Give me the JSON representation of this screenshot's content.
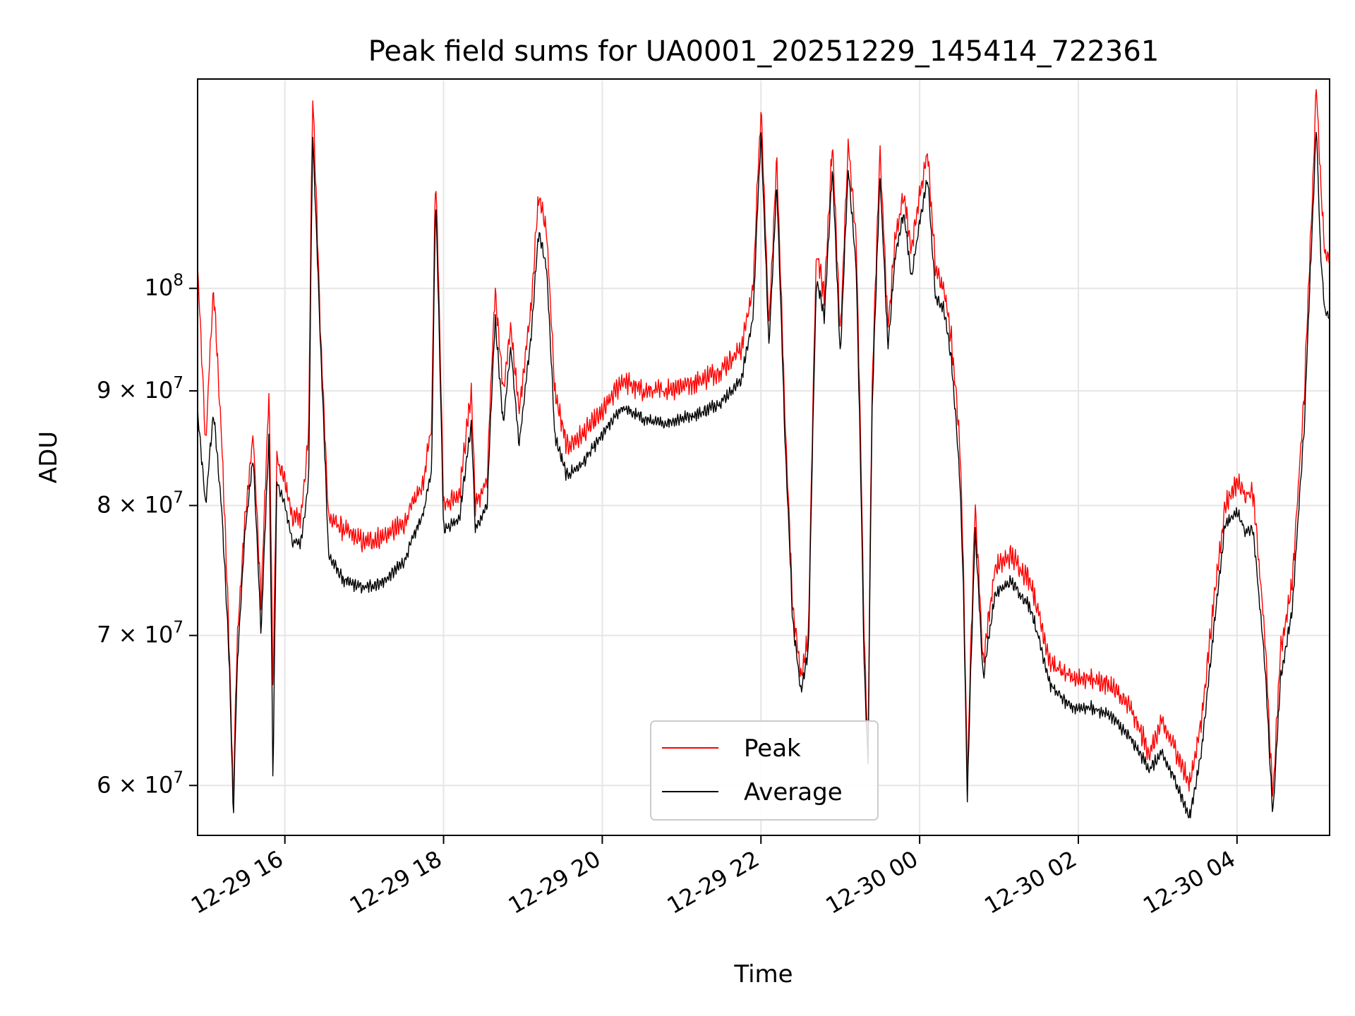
{
  "chart_data": {
    "type": "line",
    "title": "Peak field sums for UA0001_20251229_145414_722361",
    "xlabel": "Time",
    "ylabel": "ADU",
    "y_scale": "log",
    "grid": true,
    "legend_position": "bottom-center",
    "x_range": [
      "2025-12-29 14:54",
      "2025-12-30 05:10"
    ],
    "ylim": [
      57000000,
      124000000
    ],
    "x_ticks": [
      {
        "time": "2025-12-29 16:00",
        "label": "12-29 16"
      },
      {
        "time": "2025-12-29 18:00",
        "label": "12-29 18"
      },
      {
        "time": "2025-12-29 20:00",
        "label": "12-29 20"
      },
      {
        "time": "2025-12-29 22:00",
        "label": "12-29 22"
      },
      {
        "time": "2025-12-30 00:00",
        "label": "12-30 00"
      },
      {
        "time": "2025-12-30 02:00",
        "label": "12-30 02"
      },
      {
        "time": "2025-12-30 04:00",
        "label": "12-30 04"
      }
    ],
    "y_ticks": [
      {
        "value": 60000000,
        "mant": "6",
        "exp": "7"
      },
      {
        "value": 70000000,
        "mant": "7",
        "exp": "7"
      },
      {
        "value": 80000000,
        "mant": "8",
        "exp": "7"
      },
      {
        "value": 90000000,
        "mant": "9",
        "exp": "7"
      },
      {
        "value": 100000000,
        "mant": "",
        "exp": "8"
      }
    ],
    "series": [
      {
        "name": "Peak",
        "color": "#ff0000",
        "points": [
          [
            "2025-12-29 14:54",
            102000000
          ],
          [
            "2025-12-29 15:00",
            85000000
          ],
          [
            "2025-12-29 15:06",
            100000000
          ],
          [
            "2025-12-29 15:12",
            86000000
          ],
          [
            "2025-12-29 15:18",
            69000000
          ],
          [
            "2025-12-29 15:21",
            59000000
          ],
          [
            "2025-12-29 15:24",
            70000000
          ],
          [
            "2025-12-29 15:30",
            79000000
          ],
          [
            "2025-12-29 15:36",
            86000000
          ],
          [
            "2025-12-29 15:42",
            72000000
          ],
          [
            "2025-12-29 15:48",
            90000000
          ],
          [
            "2025-12-29 15:51",
            66000000
          ],
          [
            "2025-12-29 15:54",
            84000000
          ],
          [
            "2025-12-29 16:00",
            82000000
          ],
          [
            "2025-12-29 16:06",
            79000000
          ],
          [
            "2025-12-29 16:12",
            79000000
          ],
          [
            "2025-12-29 16:18",
            86000000
          ],
          [
            "2025-12-29 16:21",
            122000000
          ],
          [
            "2025-12-29 16:27",
            95000000
          ],
          [
            "2025-12-29 16:33",
            79000000
          ],
          [
            "2025-12-29 16:45",
            78000000
          ],
          [
            "2025-12-29 17:00",
            77000000
          ],
          [
            "2025-12-29 17:15",
            77500000
          ],
          [
            "2025-12-29 17:30",
            78500000
          ],
          [
            "2025-12-29 17:45",
            82000000
          ],
          [
            "2025-12-29 17:51",
            87000000
          ],
          [
            "2025-12-29 17:54",
            113000000
          ],
          [
            "2025-12-29 18:00",
            80000000
          ],
          [
            "2025-12-29 18:12",
            81000000
          ],
          [
            "2025-12-29 18:21",
            90000000
          ],
          [
            "2025-12-29 18:24",
            80000000
          ],
          [
            "2025-12-29 18:33",
            82000000
          ],
          [
            "2025-12-29 18:39",
            100000000
          ],
          [
            "2025-12-29 18:45",
            90000000
          ],
          [
            "2025-12-29 18:51",
            96000000
          ],
          [
            "2025-12-29 18:57",
            88000000
          ],
          [
            "2025-12-29 19:06",
            98000000
          ],
          [
            "2025-12-29 19:12",
            110000000
          ],
          [
            "2025-12-29 19:18",
            106000000
          ],
          [
            "2025-12-29 19:24",
            90000000
          ],
          [
            "2025-12-29 19:33",
            85000000
          ],
          [
            "2025-12-29 19:45",
            86000000
          ],
          [
            "2025-12-29 20:00",
            88000000
          ],
          [
            "2025-12-29 20:15",
            91000000
          ],
          [
            "2025-12-29 20:30",
            90000000
          ],
          [
            "2025-12-29 20:45",
            90000000
          ],
          [
            "2025-12-29 21:00",
            90500000
          ],
          [
            "2025-12-29 21:15",
            91000000
          ],
          [
            "2025-12-29 21:30",
            92000000
          ],
          [
            "2025-12-29 21:45",
            94000000
          ],
          [
            "2025-12-29 21:54",
            100000000
          ],
          [
            "2025-12-29 22:00",
            120000000
          ],
          [
            "2025-12-29 22:06",
            96000000
          ],
          [
            "2025-12-29 22:12",
            114000000
          ],
          [
            "2025-12-29 22:18",
            88000000
          ],
          [
            "2025-12-29 22:24",
            72000000
          ],
          [
            "2025-12-29 22:30",
            67000000
          ],
          [
            "2025-12-29 22:36",
            70000000
          ],
          [
            "2025-12-29 22:42",
            104000000
          ],
          [
            "2025-12-29 22:48",
            99000000
          ],
          [
            "2025-12-29 22:54",
            116000000
          ],
          [
            "2025-12-29 23:00",
            95000000
          ],
          [
            "2025-12-29 23:06",
            116000000
          ],
          [
            "2025-12-29 23:12",
            105000000
          ],
          [
            "2025-12-29 23:18",
            70000000
          ],
          [
            "2025-12-29 23:21",
            62000000
          ],
          [
            "2025-12-29 23:24",
            90000000
          ],
          [
            "2025-12-29 23:30",
            115000000
          ],
          [
            "2025-12-29 23:36",
            96000000
          ],
          [
            "2025-12-29 23:42",
            106000000
          ],
          [
            "2025-12-29 23:48",
            110000000
          ],
          [
            "2025-12-29 23:54",
            104000000
          ],
          [
            "2025-12-30 00:00",
            110000000
          ],
          [
            "2025-12-30 00:06",
            115000000
          ],
          [
            "2025-12-30 00:12",
            102000000
          ],
          [
            "2025-12-30 00:18",
            100000000
          ],
          [
            "2025-12-30 00:24",
            95000000
          ],
          [
            "2025-12-30 00:30",
            86000000
          ],
          [
            "2025-12-30 00:33",
            76000000
          ],
          [
            "2025-12-30 00:36",
            60000000
          ],
          [
            "2025-12-30 00:42",
            80000000
          ],
          [
            "2025-12-30 00:48",
            68000000
          ],
          [
            "2025-12-30 00:57",
            75000000
          ],
          [
            "2025-12-30 01:09",
            76000000
          ],
          [
            "2025-12-30 01:24",
            74000000
          ],
          [
            "2025-12-30 01:39",
            68000000
          ],
          [
            "2025-12-30 01:54",
            67000000
          ],
          [
            "2025-12-30 02:09",
            67000000
          ],
          [
            "2025-12-30 02:24",
            66500000
          ],
          [
            "2025-12-30 02:39",
            65000000
          ],
          [
            "2025-12-30 02:54",
            62000000
          ],
          [
            "2025-12-30 03:03",
            64000000
          ],
          [
            "2025-12-30 03:15",
            62000000
          ],
          [
            "2025-12-30 03:24",
            60000000
          ],
          [
            "2025-12-30 03:33",
            64000000
          ],
          [
            "2025-12-30 03:42",
            72000000
          ],
          [
            "2025-12-30 03:51",
            80000000
          ],
          [
            "2025-12-30 04:00",
            82000000
          ],
          [
            "2025-12-30 04:06",
            81000000
          ],
          [
            "2025-12-30 04:12",
            81000000
          ],
          [
            "2025-12-30 04:21",
            70000000
          ],
          [
            "2025-12-30 04:27",
            59000000
          ],
          [
            "2025-12-30 04:33",
            69000000
          ],
          [
            "2025-12-30 04:42",
            74000000
          ],
          [
            "2025-12-30 04:51",
            90000000
          ],
          [
            "2025-12-30 04:57",
            110000000
          ],
          [
            "2025-12-30 05:00",
            123000000
          ],
          [
            "2025-12-30 05:03",
            112000000
          ],
          [
            "2025-12-30 05:06",
            104000000
          ],
          [
            "2025-12-30 05:10",
            103000000
          ]
        ]
      },
      {
        "name": "Average",
        "color": "#000000",
        "points": [
          [
            "2025-12-29 14:54",
            88000000
          ],
          [
            "2025-12-29 15:00",
            80000000
          ],
          [
            "2025-12-29 15:06",
            88000000
          ],
          [
            "2025-12-29 15:12",
            80000000
          ],
          [
            "2025-12-29 15:18",
            68000000
          ],
          [
            "2025-12-29 15:21",
            58000000
          ],
          [
            "2025-12-29 15:24",
            68000000
          ],
          [
            "2025-12-29 15:30",
            78000000
          ],
          [
            "2025-12-29 15:36",
            84000000
          ],
          [
            "2025-12-29 15:42",
            70000000
          ],
          [
            "2025-12-29 15:48",
            86000000
          ],
          [
            "2025-12-29 15:51",
            60000000
          ],
          [
            "2025-12-29 15:54",
            82000000
          ],
          [
            "2025-12-29 16:00",
            80000000
          ],
          [
            "2025-12-29 16:06",
            77000000
          ],
          [
            "2025-12-29 16:12",
            77000000
          ],
          [
            "2025-12-29 16:18",
            82000000
          ],
          [
            "2025-12-29 16:21",
            117000000
          ],
          [
            "2025-12-29 16:27",
            94000000
          ],
          [
            "2025-12-29 16:33",
            76000000
          ],
          [
            "2025-12-29 16:45",
            74000000
          ],
          [
            "2025-12-29 17:00",
            73500000
          ],
          [
            "2025-12-29 17:15",
            74000000
          ],
          [
            "2025-12-29 17:30",
            75500000
          ],
          [
            "2025-12-29 17:45",
            79500000
          ],
          [
            "2025-12-29 17:51",
            83000000
          ],
          [
            "2025-12-29 17:54",
            110000000
          ],
          [
            "2025-12-29 18:00",
            78000000
          ],
          [
            "2025-12-29 18:12",
            79000000
          ],
          [
            "2025-12-29 18:21",
            87000000
          ],
          [
            "2025-12-29 18:24",
            78000000
          ],
          [
            "2025-12-29 18:33",
            80000000
          ],
          [
            "2025-12-29 18:39",
            97000000
          ],
          [
            "2025-12-29 18:45",
            87000000
          ],
          [
            "2025-12-29 18:51",
            94000000
          ],
          [
            "2025-12-29 18:57",
            85000000
          ],
          [
            "2025-12-29 19:06",
            95000000
          ],
          [
            "2025-12-29 19:12",
            106000000
          ],
          [
            "2025-12-29 19:18",
            102000000
          ],
          [
            "2025-12-29 19:24",
            86000000
          ],
          [
            "2025-12-29 19:33",
            82500000
          ],
          [
            "2025-12-29 19:45",
            83500000
          ],
          [
            "2025-12-29 20:00",
            86000000
          ],
          [
            "2025-12-29 20:15",
            88500000
          ],
          [
            "2025-12-29 20:30",
            87500000
          ],
          [
            "2025-12-29 20:45",
            87000000
          ],
          [
            "2025-12-29 21:00",
            87500000
          ],
          [
            "2025-12-29 21:15",
            88000000
          ],
          [
            "2025-12-29 21:30",
            89000000
          ],
          [
            "2025-12-29 21:45",
            91000000
          ],
          [
            "2025-12-29 21:54",
            97000000
          ],
          [
            "2025-12-29 22:00",
            117000000
          ],
          [
            "2025-12-29 22:06",
            94000000
          ],
          [
            "2025-12-29 22:12",
            111000000
          ],
          [
            "2025-12-29 22:18",
            86000000
          ],
          [
            "2025-12-29 22:24",
            71000000
          ],
          [
            "2025-12-29 22:30",
            66000000
          ],
          [
            "2025-12-29 22:36",
            69000000
          ],
          [
            "2025-12-29 22:42",
            101000000
          ],
          [
            "2025-12-29 22:48",
            97000000
          ],
          [
            "2025-12-29 22:54",
            113000000
          ],
          [
            "2025-12-29 23:00",
            93000000
          ],
          [
            "2025-12-29 23:06",
            113000000
          ],
          [
            "2025-12-29 23:12",
            102000000
          ],
          [
            "2025-12-29 23:18",
            68000000
          ],
          [
            "2025-12-29 23:21",
            61000000
          ],
          [
            "2025-12-29 23:24",
            88000000
          ],
          [
            "2025-12-29 23:30",
            112000000
          ],
          [
            "2025-12-29 23:36",
            94000000
          ],
          [
            "2025-12-29 23:42",
            104000000
          ],
          [
            "2025-12-29 23:48",
            108000000
          ],
          [
            "2025-12-29 23:54",
            101000000
          ],
          [
            "2025-12-30 00:00",
            107000000
          ],
          [
            "2025-12-30 00:06",
            112000000
          ],
          [
            "2025-12-30 00:12",
            99000000
          ],
          [
            "2025-12-30 00:18",
            98000000
          ],
          [
            "2025-12-30 00:24",
            93000000
          ],
          [
            "2025-12-30 00:30",
            83000000
          ],
          [
            "2025-12-30 00:33",
            74000000
          ],
          [
            "2025-12-30 00:36",
            59000000
          ],
          [
            "2025-12-30 00:42",
            78000000
          ],
          [
            "2025-12-30 00:48",
            67000000
          ],
          [
            "2025-12-30 00:57",
            73000000
          ],
          [
            "2025-12-30 01:09",
            74000000
          ],
          [
            "2025-12-30 01:24",
            72000000
          ],
          [
            "2025-12-30 01:39",
            66500000
          ],
          [
            "2025-12-30 01:54",
            65000000
          ],
          [
            "2025-12-30 02:09",
            65000000
          ],
          [
            "2025-12-30 02:24",
            64500000
          ],
          [
            "2025-12-30 02:39",
            63000000
          ],
          [
            "2025-12-30 02:54",
            61000000
          ],
          [
            "2025-12-30 03:03",
            62000000
          ],
          [
            "2025-12-30 03:15",
            60000000
          ],
          [
            "2025-12-30 03:24",
            58000000
          ],
          [
            "2025-12-30 03:33",
            62000000
          ],
          [
            "2025-12-30 03:42",
            70000000
          ],
          [
            "2025-12-30 03:51",
            78500000
          ],
          [
            "2025-12-30 04:00",
            79500000
          ],
          [
            "2025-12-30 04:06",
            78000000
          ],
          [
            "2025-12-30 04:12",
            78000000
          ],
          [
            "2025-12-30 04:21",
            68000000
          ],
          [
            "2025-12-30 04:27",
            58000000
          ],
          [
            "2025-12-30 04:33",
            67000000
          ],
          [
            "2025-12-30 04:42",
            72000000
          ],
          [
            "2025-12-30 04:51",
            87000000
          ],
          [
            "2025-12-30 04:57",
            107000000
          ],
          [
            "2025-12-30 05:00",
            118000000
          ],
          [
            "2025-12-30 05:03",
            104000000
          ],
          [
            "2025-12-30 05:06",
            98000000
          ],
          [
            "2025-12-30 05:10",
            97000000
          ]
        ]
      }
    ]
  }
}
